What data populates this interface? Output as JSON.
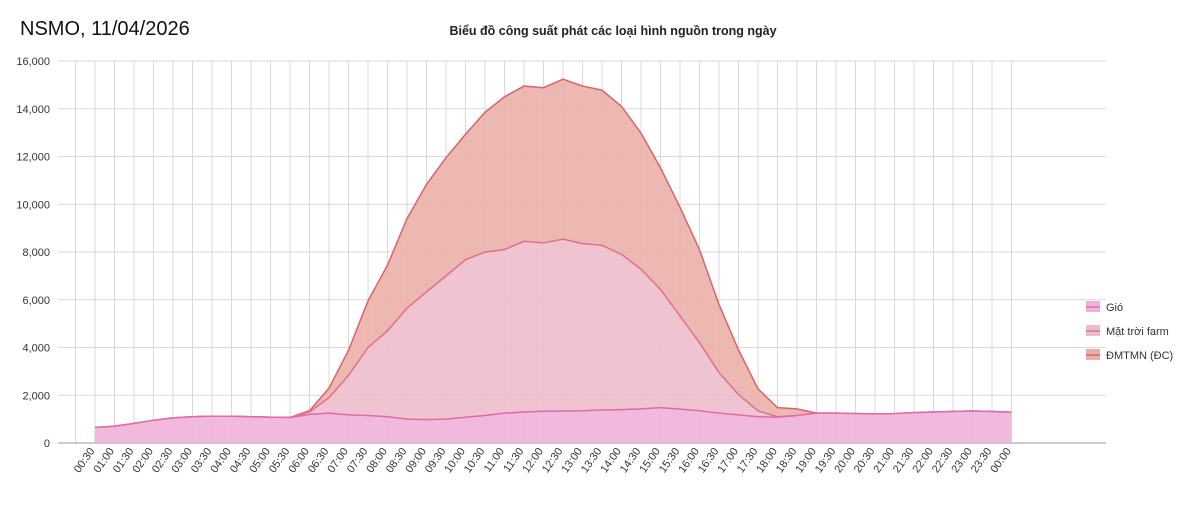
{
  "header": {
    "source_date": "NSMO, 11/04/2026"
  },
  "colors": {
    "wind_fill": "#efb3d9",
    "wind_line": "#e06aaa",
    "solar_farm_fill": "#eebccb",
    "solar_farm_line": "#e0708e",
    "rooftop_fill": "#eab0a8",
    "rooftop_line": "#d9636b",
    "grid": "#d9d9d9",
    "axis": "#999999"
  },
  "chart_data": {
    "type": "area",
    "stacked": true,
    "title": "Biểu đồ công suất phát các loại hình nguồn trong ngày",
    "xlabel": "",
    "ylabel": "",
    "ylim": [
      0,
      16000
    ],
    "yticks": [
      0,
      2000,
      4000,
      6000,
      8000,
      10000,
      12000,
      14000,
      16000
    ],
    "ytick_labels": [
      "0",
      "2,000",
      "4,000",
      "6,000",
      "8,000",
      "10,000",
      "12,000",
      "14,000",
      "16,000"
    ],
    "legend_position": "right",
    "x": [
      "00:30",
      "01:00",
      "01:30",
      "02:00",
      "02:30",
      "03:00",
      "03:30",
      "04:00",
      "04:30",
      "05:00",
      "05:30",
      "06:00",
      "06:30",
      "07:00",
      "07:30",
      "08:00",
      "08:30",
      "09:00",
      "09:30",
      "10:00",
      "10:30",
      "11:00",
      "11:30",
      "12:00",
      "12:30",
      "13:00",
      "13:30",
      "14:00",
      "14:30",
      "15:00",
      "15:30",
      "16:00",
      "16:30",
      "17:00",
      "17:30",
      "18:00",
      "18:30",
      "19:00",
      "19:30",
      "20:00",
      "20:30",
      "21:00",
      "21:30",
      "22:00",
      "22:30",
      "23:00",
      "23:30",
      "00:00"
    ],
    "series": [
      {
        "name": "Gió",
        "values": [
          650,
          700,
          820,
          950,
          1050,
          1100,
          1120,
          1120,
          1100,
          1080,
          1070,
          1200,
          1250,
          1180,
          1150,
          1100,
          1000,
          980,
          1000,
          1080,
          1150,
          1250,
          1300,
          1330,
          1340,
          1350,
          1380,
          1400,
          1430,
          1480,
          1420,
          1350,
          1250,
          1180,
          1100,
          1080,
          1150,
          1250,
          1250,
          1230,
          1220,
          1230,
          1270,
          1300,
          1320,
          1340,
          1320,
          1290
        ]
      },
      {
        "name": "Mặt trời farm",
        "values": [
          0,
          0,
          0,
          0,
          0,
          0,
          0,
          0,
          0,
          0,
          0,
          100,
          650,
          1650,
          2850,
          3600,
          4650,
          5350,
          6000,
          6600,
          6850,
          6850,
          7150,
          7050,
          7200,
          7000,
          6900,
          6500,
          5850,
          4950,
          3900,
          2850,
          1700,
          850,
          250,
          20,
          0,
          0,
          0,
          0,
          0,
          0,
          0,
          0,
          0,
          0,
          0,
          0
        ]
      },
      {
        "name": "ĐMTMN (ĐC)",
        "values": [
          0,
          0,
          0,
          0,
          0,
          0,
          0,
          0,
          0,
          0,
          0,
          50,
          400,
          1050,
          1950,
          2750,
          3750,
          4500,
          4950,
          5250,
          5850,
          6400,
          6500,
          6500,
          6700,
          6600,
          6500,
          6200,
          5700,
          5100,
          4550,
          3900,
          2850,
          1870,
          920,
          380,
          280,
          0,
          0,
          0,
          0,
          0,
          0,
          0,
          0,
          0,
          0,
          0
        ]
      }
    ]
  }
}
